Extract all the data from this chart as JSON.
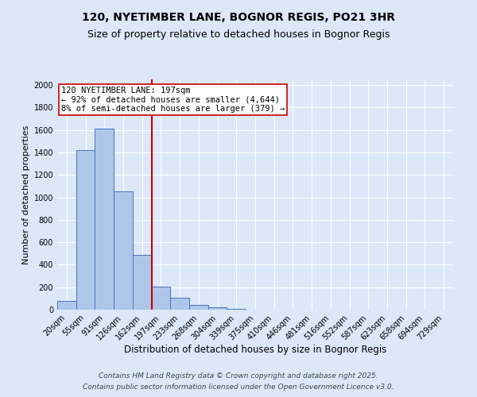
{
  "title": "120, NYETIMBER LANE, BOGNOR REGIS, PO21 3HR",
  "subtitle": "Size of property relative to detached houses in Bognor Regis",
  "xlabel": "Distribution of detached houses by size in Bognor Regis",
  "ylabel": "Number of detached properties",
  "bin_labels": [
    "20sqm",
    "55sqm",
    "91sqm",
    "126sqm",
    "162sqm",
    "197sqm",
    "233sqm",
    "268sqm",
    "304sqm",
    "339sqm",
    "375sqm",
    "410sqm",
    "446sqm",
    "481sqm",
    "516sqm",
    "552sqm",
    "587sqm",
    "623sqm",
    "658sqm",
    "694sqm",
    "729sqm"
  ],
  "bar_values": [
    80,
    1420,
    1610,
    1055,
    490,
    205,
    105,
    45,
    20,
    10,
    0,
    0,
    0,
    0,
    0,
    0,
    0,
    0,
    0,
    0,
    0
  ],
  "bar_color": "#aec6e8",
  "bar_edgecolor": "#4472c4",
  "background_color": "#dce8f8",
  "grid_color": "#ffffff",
  "vline_color": "#cc0000",
  "annotation_text": "120 NYETIMBER LANE: 197sqm\n← 92% of detached houses are smaller (4,644)\n8% of semi-detached houses are larger (379) →",
  "annotation_box_edgecolor": "#cc0000",
  "annotation_box_facecolor": "#ffffff",
  "ylim": [
    0,
    2050
  ],
  "yticks": [
    0,
    200,
    400,
    600,
    800,
    1000,
    1200,
    1400,
    1600,
    1800,
    2000
  ],
  "footer_line1": "Contains HM Land Registry data © Crown copyright and database right 2025.",
  "footer_line2": "Contains public sector information licensed under the Open Government Licence v3.0.",
  "title_fontsize": 10,
  "subtitle_fontsize": 9,
  "xlabel_fontsize": 8.5,
  "ylabel_fontsize": 8,
  "tick_fontsize": 7,
  "footer_fontsize": 6.5,
  "annot_fontsize": 7.5
}
